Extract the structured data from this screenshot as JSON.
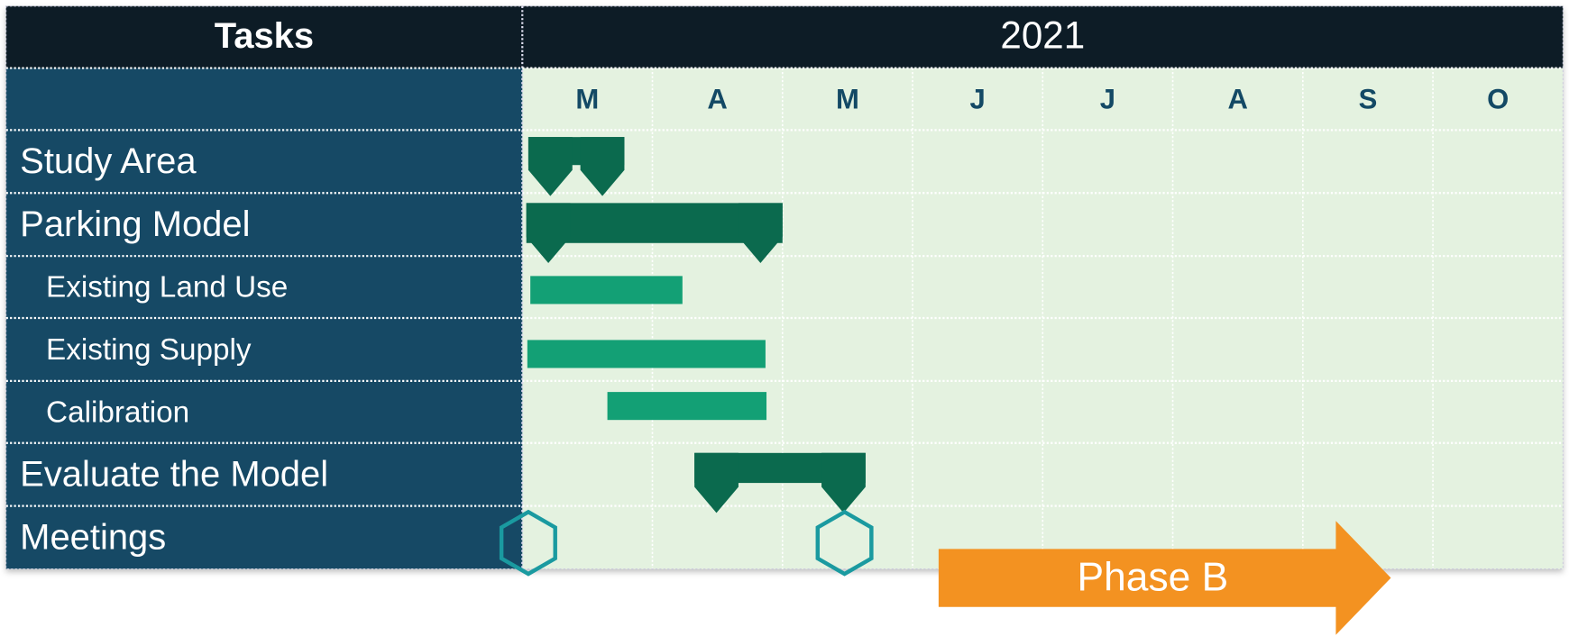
{
  "header": {
    "tasks": "Tasks",
    "year": "2021"
  },
  "months": [
    "M",
    "A",
    "M",
    "J",
    "J",
    "A",
    "S",
    "O"
  ],
  "rows": [
    "Study Area",
    "Parking Model",
    "Existing Land Use",
    "Existing Supply",
    "Calibration",
    "Evaluate the Model",
    "Meetings"
  ],
  "phase": "Phase B"
}
